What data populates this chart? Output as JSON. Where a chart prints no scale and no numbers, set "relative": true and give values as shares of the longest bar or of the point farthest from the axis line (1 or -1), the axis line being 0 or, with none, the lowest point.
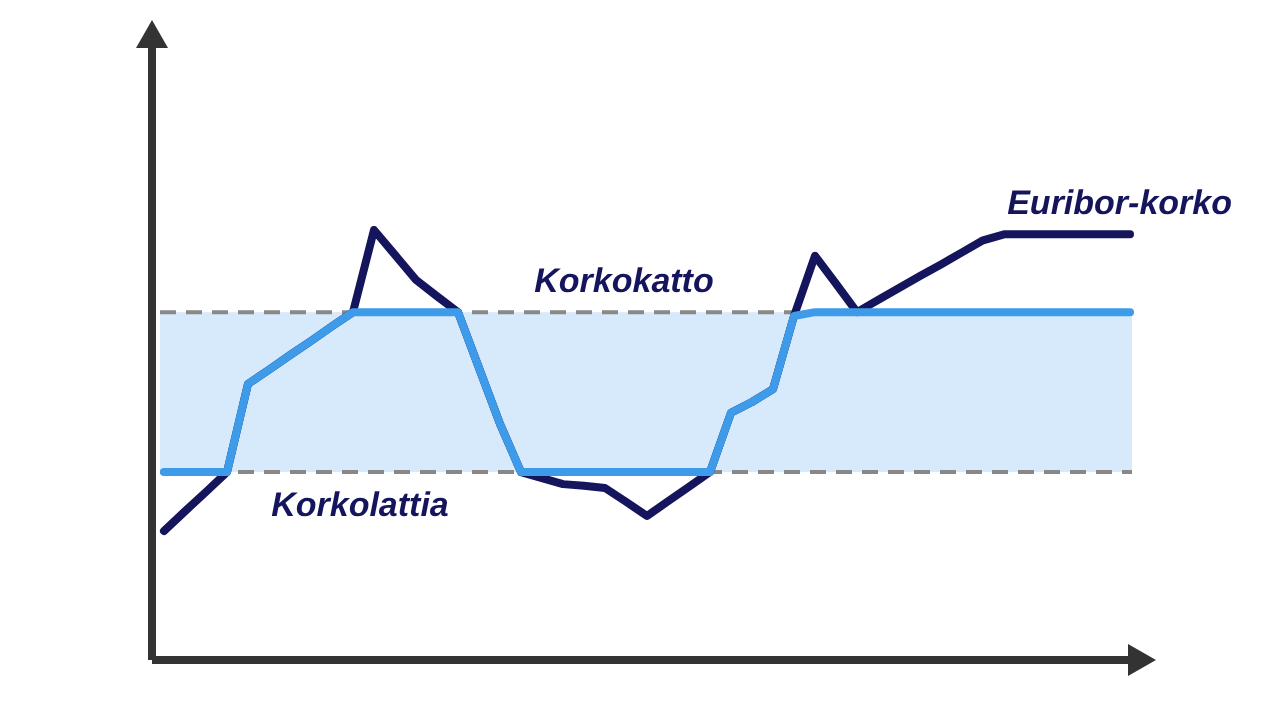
{
  "chart_data": {
    "type": "line",
    "relative": true,
    "line_style": "solid",
    "categories": [
      null,
      null,
      null,
      null,
      null,
      null,
      null,
      null,
      null,
      null,
      null,
      null,
      null,
      null,
      null,
      null,
      null,
      null,
      null,
      null,
      null,
      null,
      null,
      null,
      null,
      null,
      null,
      null,
      null,
      null,
      null,
      null,
      null,
      null,
      null,
      null,
      null,
      null,
      null,
      null,
      null,
      null,
      null,
      null,
      null,
      null,
      null
    ],
    "series": [
      {
        "name": "Euribor-korko",
        "color": "#14155c",
        "values": [
          0.3,
          0.346,
          0.391,
          0.437,
          0.642,
          0.675,
          0.709,
          0.742,
          0.776,
          0.809,
          1.0,
          0.942,
          0.884,
          0.846,
          0.809,
          0.679,
          0.549,
          0.437,
          0.423,
          0.409,
          0.405,
          0.4,
          0.368,
          0.335,
          0.369,
          0.403,
          0.437,
          0.575,
          0.6,
          0.63,
          0.8,
          0.94,
          0.875,
          0.809,
          0.837,
          0.865,
          0.893,
          0.92,
          0.948,
          0.976,
          0.99,
          0.99,
          0.99,
          0.99,
          0.99,
          0.99,
          0.99
        ]
      },
      {
        "color": "#3d9be9",
        "values": [
          0.437,
          0.437,
          0.437,
          0.437,
          0.642,
          0.675,
          0.709,
          0.742,
          0.776,
          0.809,
          0.809,
          0.809,
          0.809,
          0.809,
          0.809,
          0.679,
          0.549,
          0.437,
          0.437,
          0.437,
          0.437,
          0.437,
          0.437,
          0.437,
          0.437,
          0.437,
          0.437,
          0.575,
          0.6,
          0.63,
          0.8,
          0.809,
          0.809,
          0.809,
          0.809,
          0.809,
          0.809,
          0.809,
          0.809,
          0.809,
          0.809,
          0.809,
          0.809,
          0.809,
          0.809,
          0.809,
          0.809
        ]
      }
    ],
    "bands": [
      {
        "axis": "y",
        "from": 0.437,
        "to": 0.809,
        "color": "#d6eafc"
      }
    ],
    "ref_lines": [
      {
        "axis": "y",
        "value": 0.809,
        "label": "Korkokatto",
        "color": "#888888",
        "line_style": "dashed"
      },
      {
        "axis": "y",
        "value": 0.437,
        "label": "Korkolattia",
        "color": "#888888",
        "line_style": "dashed"
      }
    ]
  }
}
